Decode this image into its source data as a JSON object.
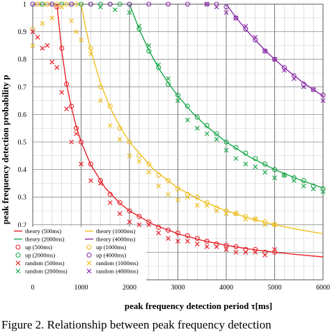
{
  "caption": "Figure 2.     Relationship between peak frequency detection",
  "chart_data": {
    "type": "scatter",
    "xlabel": "peak frequency detection period τ[ms]",
    "ylabel": "peak frequency detection probability p",
    "xlim": [
      0,
      6000
    ],
    "ylim": [
      0,
      1
    ],
    "xticks": [
      0,
      1000,
      2000,
      3000,
      4000,
      5000,
      6000
    ],
    "yticks": [
      0.1,
      0.2,
      0.3,
      0.4,
      0.5,
      0.6,
      0.7,
      0.8,
      0.9,
      1
    ],
    "grid": true,
    "legend_position": "bottom-left",
    "colors": {
      "500": "#e8202a",
      "1000": "#f0c020",
      "2000": "#1aa84a",
      "4000": "#8a2aa8"
    },
    "series": [
      {
        "name": "theory (500ms)",
        "kind": "line",
        "color": "#e8202a",
        "x": [
          500,
          600,
          700,
          800,
          900,
          1000,
          1200,
          1500,
          1800,
          2000,
          2500,
          3000,
          3500,
          4000,
          4500,
          5000,
          5500,
          6000
        ],
        "values": [
          1,
          0.83,
          0.71,
          0.625,
          0.556,
          0.5,
          0.417,
          0.333,
          0.278,
          0.25,
          0.2,
          0.167,
          0.143,
          0.125,
          0.111,
          0.1,
          0.091,
          0.083
        ]
      },
      {
        "name": "theory (1000ms)",
        "kind": "line",
        "color": "#f0c020",
        "x": [
          1000,
          1100,
          1200,
          1400,
          1600,
          1800,
          2000,
          2500,
          3000,
          3500,
          4000,
          4500,
          5000,
          5500,
          6000
        ],
        "values": [
          1,
          0.909,
          0.833,
          0.714,
          0.625,
          0.556,
          0.5,
          0.4,
          0.333,
          0.286,
          0.25,
          0.222,
          0.2,
          0.182,
          0.167
        ]
      },
      {
        "name": "theory (2000ms)",
        "kind": "line",
        "color": "#1aa84a",
        "x": [
          2000,
          2200,
          2400,
          2600,
          2800,
          3000,
          3300,
          3600,
          4000,
          4500,
          5000,
          5500,
          6000
        ],
        "values": [
          1,
          0.909,
          0.833,
          0.769,
          0.714,
          0.667,
          0.606,
          0.556,
          0.5,
          0.444,
          0.4,
          0.364,
          0.333
        ]
      },
      {
        "name": "theory (4000ms)",
        "kind": "line",
        "color": "#8a2aa8",
        "x": [
          4000,
          4200,
          4400,
          4600,
          4800,
          5000,
          5200,
          5400,
          5600,
          5800,
          6000
        ],
        "values": [
          1,
          0.952,
          0.909,
          0.87,
          0.833,
          0.8,
          0.769,
          0.741,
          0.714,
          0.69,
          0.667
        ]
      },
      {
        "name": "up (500ms)",
        "kind": "circle",
        "color": "#e8202a",
        "x": [
          100,
          200,
          300,
          400,
          500,
          600,
          700,
          800,
          900,
          1000,
          1200,
          1400,
          1600,
          1800,
          2000,
          2200,
          2400,
          2600,
          2800,
          3000,
          3200,
          3400,
          3600,
          3800,
          4000,
          4200,
          4400,
          4600,
          4800,
          5000
        ],
        "values": [
          1,
          1,
          1,
          1,
          0.99,
          0.84,
          0.71,
          0.63,
          0.55,
          0.5,
          0.42,
          0.36,
          0.31,
          0.28,
          0.25,
          0.23,
          0.21,
          0.19,
          0.18,
          0.17,
          0.16,
          0.15,
          0.14,
          0.13,
          0.125,
          0.12,
          0.11,
          0.11,
          0.1,
          0.1
        ]
      },
      {
        "name": "up (1000ms)",
        "kind": "circle",
        "color": "#f0c020",
        "x": [
          0,
          100,
          200,
          300,
          400,
          500,
          600,
          700,
          800,
          900,
          1000,
          1200,
          1400,
          1600,
          1800,
          2000,
          2200,
          2400,
          2600,
          2800,
          3000,
          3200,
          3400,
          3600,
          3800,
          4000,
          4200,
          4400,
          4600,
          4800,
          5000
        ],
        "values": [
          0.91,
          1,
          1,
          1,
          1,
          1,
          1,
          1,
          1,
          1,
          1,
          0.84,
          0.7,
          0.63,
          0.55,
          0.5,
          0.45,
          0.42,
          0.38,
          0.36,
          0.33,
          0.31,
          0.3,
          0.28,
          0.26,
          0.25,
          0.24,
          0.23,
          0.22,
          0.21,
          0.2
        ]
      },
      {
        "name": "up (2000ms)",
        "kind": "circle",
        "color": "#1aa84a",
        "x": [
          0,
          200,
          400,
          600,
          800,
          1000,
          1200,
          1400,
          1600,
          1800,
          2000,
          2200,
          2400,
          2600,
          2800,
          3000,
          3200,
          3400,
          3600,
          3800,
          4000,
          4200,
          4400,
          4600,
          4800,
          5000,
          5200,
          5400,
          5600,
          5800,
          6000
        ],
        "values": [
          1,
          1,
          1,
          1,
          1,
          1,
          1,
          1,
          1,
          1,
          1,
          0.91,
          0.83,
          0.77,
          0.71,
          0.67,
          0.63,
          0.59,
          0.56,
          0.53,
          0.5,
          0.48,
          0.46,
          0.44,
          0.42,
          0.4,
          0.38,
          0.37,
          0.36,
          0.34,
          0.33
        ]
      },
      {
        "name": "up (4000ms)",
        "kind": "circle",
        "color": "#8a2aa8",
        "x": [
          0,
          400,
          800,
          1200,
          1600,
          2000,
          2400,
          2800,
          3200,
          3600,
          3800,
          4000,
          4200,
          4400,
          4600,
          4800,
          5000,
          5200,
          5400,
          5600,
          5800,
          6000
        ],
        "values": [
          1,
          1,
          1,
          1,
          1,
          1,
          1,
          1,
          1,
          1,
          1,
          0.99,
          0.95,
          0.91,
          0.87,
          0.83,
          0.8,
          0.77,
          0.74,
          0.71,
          0.69,
          0.67
        ]
      },
      {
        "name": "random (500ms)",
        "kind": "cross",
        "color": "#e8202a",
        "x": [
          0,
          100,
          200,
          300,
          400,
          500,
          600,
          700,
          800,
          900,
          1000,
          1200,
          1400,
          1600,
          1800,
          2000,
          2200,
          2400,
          2600,
          2800,
          3000,
          3200,
          3400,
          3600,
          3800,
          4000,
          4200,
          4400,
          4600,
          4800,
          5000
        ],
        "values": [
          0.9,
          0.88,
          0.84,
          0.85,
          0.79,
          0.77,
          0.68,
          0.62,
          0.5,
          0.53,
          0.42,
          0.36,
          0.35,
          0.28,
          0.24,
          0.21,
          0.2,
          0.2,
          0.17,
          0.15,
          0.14,
          0.14,
          0.13,
          0.12,
          0.12,
          0.11,
          0.1,
          0.1,
          0.1,
          0.09,
          0.11
        ]
      },
      {
        "name": "random (1000ms)",
        "kind": "cross",
        "color": "#f0c020",
        "x": [
          0,
          200,
          400,
          600,
          800,
          900,
          1000,
          1200,
          1400,
          1600,
          1800,
          2000,
          2200,
          2400,
          2600,
          2800,
          3000,
          3200,
          3400,
          3600,
          3800,
          4000,
          4200,
          4400,
          4600,
          4800,
          5000
        ],
        "values": [
          0.85,
          0.93,
          0.95,
          0.99,
          0.94,
          0.9,
          0.87,
          0.82,
          0.65,
          0.56,
          0.51,
          0.45,
          0.43,
          0.39,
          0.34,
          0.31,
          0.29,
          0.3,
          0.27,
          0.27,
          0.25,
          0.24,
          0.24,
          0.22,
          0.22,
          0.2,
          0.2
        ]
      },
      {
        "name": "random (2000ms)",
        "kind": "cross",
        "color": "#1aa84a",
        "x": [
          1400,
          1700,
          2000,
          2200,
          2400,
          2600,
          2800,
          3000,
          3200,
          3400,
          3600,
          3800,
          4000,
          4200,
          4400,
          4600,
          4800,
          5000,
          5200,
          5400,
          5600,
          5800,
          6000
        ],
        "values": [
          0.99,
          0.98,
          0.97,
          0.92,
          0.85,
          0.78,
          0.73,
          0.65,
          0.58,
          0.55,
          0.53,
          0.51,
          0.47,
          0.44,
          0.42,
          0.41,
          0.39,
          0.37,
          0.38,
          0.36,
          0.34,
          0.33,
          0.32
        ]
      },
      {
        "name": "random (4000ms)",
        "kind": "cross",
        "color": "#8a2aa8",
        "x": [
          3600,
          3800,
          4000,
          4200,
          4400,
          4600,
          4800,
          5000,
          5200,
          5400,
          5600,
          5800,
          6000
        ],
        "values": [
          1,
          0.99,
          0.97,
          0.95,
          0.92,
          0.88,
          0.83,
          0.8,
          0.76,
          0.73,
          0.7,
          0.69,
          0.65
        ]
      }
    ]
  }
}
